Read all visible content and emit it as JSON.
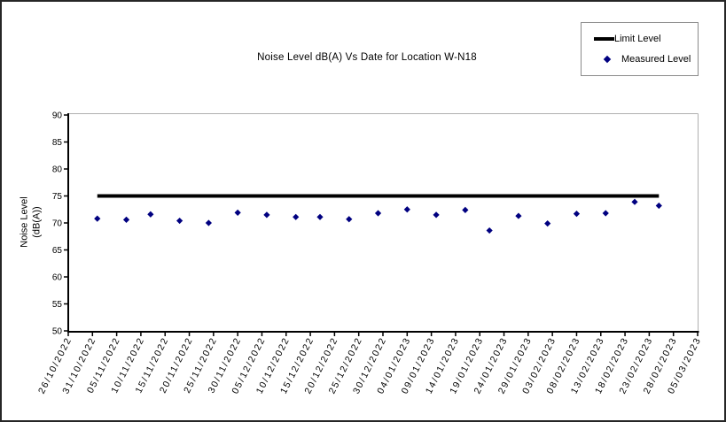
{
  "chart_data": {
    "type": "line+scatter",
    "title": "Noise Level dB(A) Vs Date for Location W-N18",
    "xlabel": "",
    "ylabel": "Noise Level (dB(A))",
    "ylim": [
      50,
      90
    ],
    "y_ticks": [
      90,
      85,
      80,
      75,
      70,
      65,
      60,
      55,
      50
    ],
    "x_ticks": [
      "26/10/2022",
      "31/10/2022",
      "05/11/2022",
      "10/11/2022",
      "15/11/2022",
      "20/11/2022",
      "25/11/2022",
      "30/11/2022",
      "05/12/2022",
      "10/12/2022",
      "15/12/2022",
      "20/12/2022",
      "25/12/2022",
      "30/12/2022",
      "04/01/2023",
      "09/01/2023",
      "14/01/2023",
      "19/01/2023",
      "24/01/2023",
      "29/01/2023",
      "03/02/2023",
      "08/02/2023",
      "13/02/2023",
      "18/02/2023",
      "23/02/2023",
      "28/02/2023",
      "05/03/2023"
    ],
    "grid": false,
    "legend_position": "outside-top-right",
    "series": [
      {
        "name": "Limit Level",
        "type": "line",
        "color": "#000000",
        "stroke_width": 4,
        "x": [
          "01/11/2022",
          "25/02/2023"
        ],
        "y": [
          75,
          75
        ]
      },
      {
        "name": "Measured Level",
        "type": "scatter",
        "marker": "diamond",
        "color": "#000080",
        "x": [
          "01/11/2022",
          "07/11/2022",
          "12/11/2022",
          "18/11/2022",
          "24/11/2022",
          "30/11/2022",
          "06/12/2022",
          "12/12/2022",
          "17/12/2022",
          "23/12/2022",
          "29/12/2022",
          "04/01/2023",
          "10/01/2023",
          "16/01/2023",
          "21/01/2023",
          "27/01/2023",
          "02/02/2023",
          "08/02/2023",
          "14/02/2023",
          "20/02/2023",
          "25/02/2023"
        ],
        "y": [
          70.8,
          70.6,
          71.6,
          70.4,
          70.0,
          71.9,
          71.5,
          71.1,
          71.1,
          70.7,
          71.8,
          72.5,
          71.5,
          72.4,
          68.6,
          71.3,
          69.9,
          71.7,
          71.8,
          73.9,
          73.2
        ]
      }
    ]
  },
  "colors": {
    "axis": "#000000",
    "plot_border": "#b0b0b0",
    "measured_point": "#000080",
    "limit_line": "#000000",
    "legend_border": "#8a8a8a"
  }
}
